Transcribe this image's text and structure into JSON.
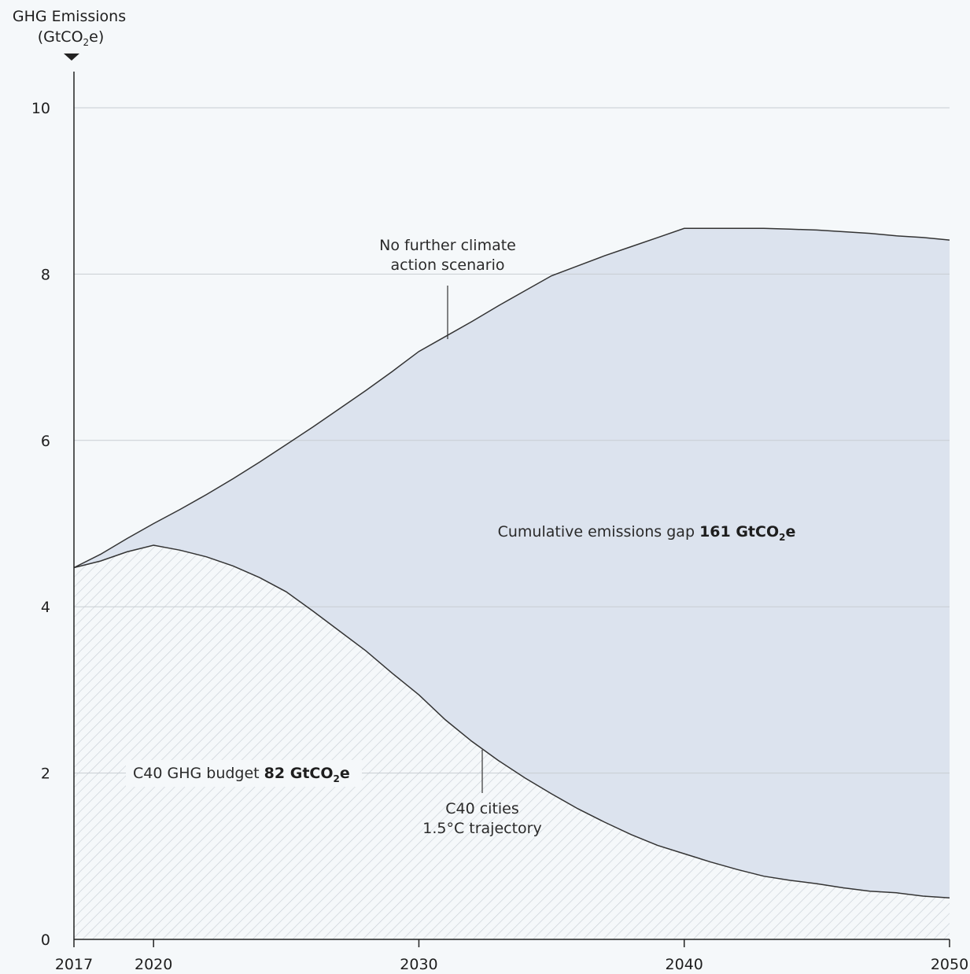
{
  "chart_data": {
    "type": "area",
    "title": "",
    "ylabel_line1": "GHG Emissions",
    "ylabel_line2": "(GtCO",
    "ylabel_sub": "2",
    "ylabel_end": "e)",
    "xlim": [
      2017,
      2050
    ],
    "ylim": [
      0,
      10.5
    ],
    "x_ticks": [
      2017,
      2020,
      2030,
      2040,
      2050
    ],
    "y_ticks": [
      0,
      2,
      4,
      6,
      8,
      10
    ],
    "grid": true,
    "series": [
      {
        "name": "No further climate action scenario",
        "x": [
          2017,
          2018,
          2019,
          2020,
          2021,
          2022,
          2023,
          2024,
          2025,
          2026,
          2027,
          2028,
          2029,
          2030,
          2031,
          2032,
          2033,
          2034,
          2035,
          2036,
          2037,
          2038,
          2039,
          2040,
          2041,
          2042,
          2043,
          2044,
          2045,
          2046,
          2047,
          2048,
          2049,
          2050
        ],
        "y": [
          4.47,
          4.63,
          4.82,
          5.0,
          5.17,
          5.35,
          5.54,
          5.74,
          5.95,
          6.16,
          6.38,
          6.6,
          6.83,
          7.07,
          7.25,
          7.43,
          7.62,
          7.8,
          7.98,
          8.1,
          8.22,
          8.33,
          8.44,
          8.55,
          8.55,
          8.55,
          8.55,
          8.54,
          8.53,
          8.51,
          8.49,
          8.46,
          8.44,
          8.41
        ],
        "color": "#333333",
        "fill": "#dce3ee"
      },
      {
        "name": "C40 cities 1.5°C trajectory",
        "x": [
          2017,
          2018,
          2019,
          2020,
          2021,
          2022,
          2023,
          2024,
          2025,
          2026,
          2027,
          2028,
          2029,
          2030,
          2031,
          2032,
          2033,
          2034,
          2035,
          2036,
          2037,
          2038,
          2039,
          2040,
          2041,
          2042,
          2043,
          2044,
          2045,
          2046,
          2047,
          2048,
          2049,
          2050
        ],
        "y": [
          4.47,
          4.55,
          4.66,
          4.74,
          4.68,
          4.6,
          4.49,
          4.35,
          4.18,
          3.95,
          3.71,
          3.47,
          3.2,
          2.94,
          2.64,
          2.38,
          2.15,
          1.94,
          1.75,
          1.57,
          1.41,
          1.26,
          1.13,
          1.03,
          0.93,
          0.84,
          0.76,
          0.71,
          0.67,
          0.62,
          0.58,
          0.56,
          0.52,
          0.5
        ],
        "color": "#333333",
        "fill": "hatch"
      }
    ],
    "annotations": {
      "no_action_line1": "No further climate",
      "no_action_line2": "action scenario",
      "gap_prefix": "Cumulative emissions gap ",
      "gap_value": "161 GtCO",
      "gap_sub": "2",
      "gap_end": "e",
      "budget_prefix": "C40 GHG budget ",
      "budget_value": "82 GtCO",
      "budget_sub": "2",
      "budget_end": "e",
      "trajectory_line1": "C40 cities",
      "trajectory_line2": "1.5°C trajectory"
    },
    "colors": {
      "background": "#f5f8fa",
      "gap_fill": "#dce3ee",
      "hatch": "#c5ccd4",
      "grid": "#c8cdd2",
      "axis": "#222222"
    }
  }
}
